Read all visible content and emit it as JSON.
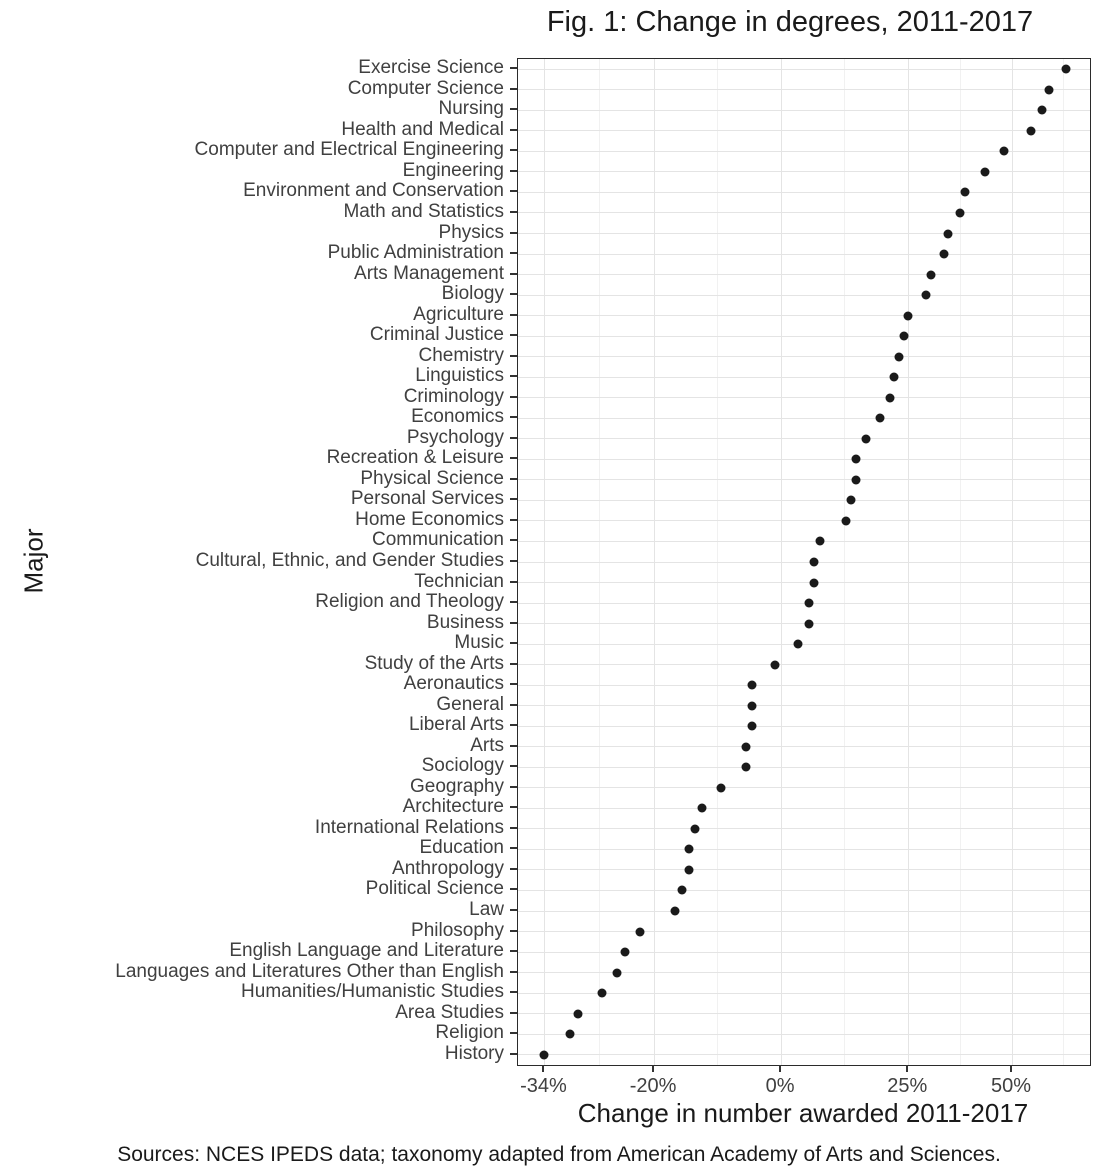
{
  "title": "Fig. 1: Change in degrees, 2011-2017",
  "y_axis": {
    "label": "Major"
  },
  "x_axis": {
    "label": "Change in number awarded 2011-2017",
    "tick_labels": [
      "-34%",
      "-20%",
      "0%",
      "25%",
      "50%"
    ],
    "tick_values": [
      -34,
      -20,
      0,
      25,
      50
    ]
  },
  "caption": "Sources: NCES IPEDS data; taxonomy adapted from American Academy of Arts and Sciences.",
  "colors": {
    "dot": "#1a1a1a",
    "grid_major": "#e4e4e4",
    "grid_minor": "#f1f1f1",
    "panel_border": "#2b2b2b",
    "background": "#ffffff"
  },
  "chart_data": {
    "type": "scatter",
    "subtype": "dot-plot",
    "title": "Fig. 1: Change in degrees, 2011-2017",
    "xlabel": "Change in number awarded 2011-2017",
    "ylabel": "Major",
    "x_unit": "percent",
    "xlim": [
      -37,
      72
    ],
    "x_scale": "log(1+x) transformed percent axis",
    "grid": true,
    "legend": false,
    "categories": [
      "Exercise Science",
      "Computer Science",
      "Nursing",
      "Health and Medical",
      "Computer and Electrical Engineering",
      "Engineering",
      "Environment and Conservation",
      "Math and Statistics",
      "Physics",
      "Public Administration",
      "Arts Management",
      "Biology",
      "Agriculture",
      "Criminal Justice",
      "Chemistry",
      "Linguistics",
      "Criminology",
      "Economics",
      "Psychology",
      "Recreation & Leisure",
      "Physical Science",
      "Personal Services",
      "Home Economics",
      "Communication",
      "Cultural, Ethnic, and Gender Studies",
      "Technician",
      "Religion and Theology",
      "Business",
      "Music",
      "Study of the Arts",
      "Aeronautics",
      "General",
      "Liberal Arts",
      "Arts",
      "Sociology",
      "Geography",
      "Architecture",
      "International Relations",
      "Education",
      "Anthropology",
      "Political Science",
      "Law",
      "Philosophy",
      "English Language and Literature",
      "Languages and Literatures Other than English",
      "Humanities/Humanistic Studies",
      "Area Studies",
      "Religion",
      "History"
    ],
    "values": [
      65,
      60,
      58,
      55,
      48,
      43,
      38,
      37,
      34,
      33,
      30,
      29,
      25,
      24,
      23,
      22,
      21,
      19,
      16,
      14,
      14,
      13,
      12,
      7,
      6,
      6,
      5,
      5,
      3,
      -1,
      -5,
      -5,
      -5,
      -6,
      -6,
      -10,
      -13,
      -14,
      -15,
      -15,
      -16,
      -17,
      -22,
      -24,
      -25,
      -27,
      -30,
      -31,
      -34
    ]
  }
}
